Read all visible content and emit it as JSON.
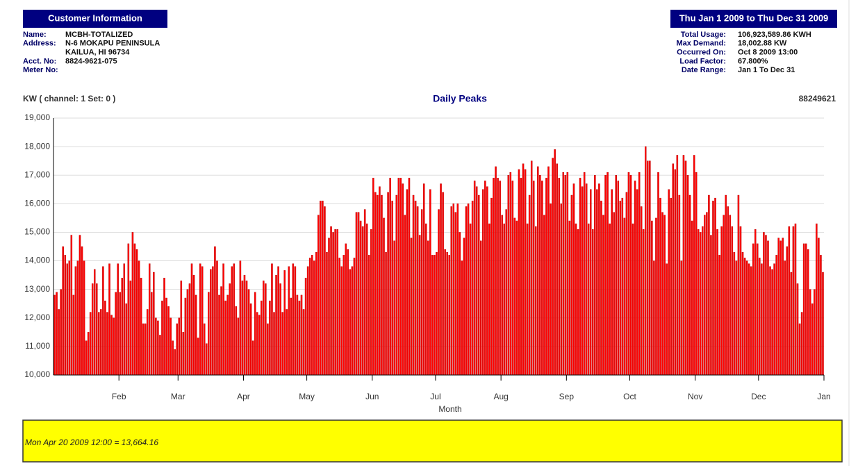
{
  "customer": {
    "title": "Customer Information",
    "rows": [
      [
        "Name:",
        "MCBH-TOTALIZED"
      ],
      [
        "Address:",
        "N-6 MOKAPU PENINSULA"
      ],
      [
        null,
        "KAILUA, HI 96734"
      ],
      [
        "Acct. No:",
        "8824-9621-075"
      ],
      [
        "Meter No:",
        null
      ]
    ]
  },
  "summary": {
    "title": "Thu Jan 1 2009 to Thu Dec 31 2009",
    "rows": [
      [
        "Total Usage:",
        "106,923,589.86 KWH"
      ],
      [
        "Max Demand:",
        "18,002.88 KW"
      ],
      [
        "Occurred On:",
        "Oct 8 2009 13:00"
      ],
      [
        "Load Factor:",
        "67.800%"
      ],
      [
        "Date Range:",
        "Jan 1 To Dec 31"
      ]
    ]
  },
  "readout": "Mon Apr 20 2009 12:00 = 13,664.16",
  "chart_data": {
    "type": "bar",
    "title": "Daily Peaks",
    "ylabel": "KW ( channel: 1   Set: 0 )",
    "meter": "88249621",
    "xlabel": "Month",
    "color": "#ff0000",
    "grid": true,
    "ylim": [
      10000,
      19000
    ],
    "yticks": [
      {
        "value": 10000,
        "label": "10,000"
      },
      {
        "value": 11000,
        "label": "11,000"
      },
      {
        "value": 12000,
        "label": "12,000"
      },
      {
        "value": 13000,
        "label": "13,000"
      },
      {
        "value": 14000,
        "label": "14,000"
      },
      {
        "value": 15000,
        "label": "15,000"
      },
      {
        "value": 16000,
        "label": "16,000"
      },
      {
        "value": 17000,
        "label": "17,000"
      },
      {
        "value": 18000,
        "label": "18,000"
      },
      {
        "value": 19000,
        "label": "19,000"
      }
    ],
    "xlim": [
      0,
      365
    ],
    "xticks": [
      {
        "value": 31,
        "label": "Feb"
      },
      {
        "value": 59,
        "label": "Mar"
      },
      {
        "value": 90,
        "label": "Apr"
      },
      {
        "value": 120,
        "label": "May"
      },
      {
        "value": 151,
        "label": "Jun"
      },
      {
        "value": 181,
        "label": "Jul"
      },
      {
        "value": 212,
        "label": "Aug"
      },
      {
        "value": 243,
        "label": "Sep"
      },
      {
        "value": 273,
        "label": "Oct"
      },
      {
        "value": 304,
        "label": "Nov"
      },
      {
        "value": 334,
        "label": "Dec"
      },
      {
        "value": 365,
        "label": "Jan"
      }
    ],
    "values": [
      12800,
      12900,
      12300,
      13000,
      14500,
      14200,
      13900,
      14000,
      14900,
      12800,
      13800,
      14000,
      14900,
      14500,
      14000,
      11200,
      11500,
      12200,
      13200,
      13700,
      13200,
      12200,
      12300,
      13800,
      12600,
      12200,
      13900,
      12100,
      12000,
      12900,
      13900,
      12900,
      13400,
      13900,
      12500,
      14600,
      13300,
      15000,
      14600,
      14400,
      14000,
      13400,
      11800,
      11800,
      12300,
      13900,
      12900,
      13600,
      12000,
      11900,
      11400,
      12600,
      13400,
      12700,
      12400,
      12000,
      11200,
      10900,
      11800,
      12000,
      13300,
      11500,
      12700,
      13000,
      13200,
      13900,
      13500,
      12800,
      11300,
      13900,
      13800,
      11800,
      11100,
      12900,
      13700,
      13800,
      14500,
      14000,
      12800,
      13100,
      13900,
      12600,
      12800,
      13200,
      13800,
      13900,
      12400,
      12000,
      14000,
      13300,
      13500,
      13300,
      13000,
      12500,
      11200,
      12900,
      12200,
      12100,
      12600,
      13300,
      13200,
      11800,
      12600,
      13900,
      12200,
      13500,
      13800,
      13200,
      12200,
      13664.16,
      12300,
      13800,
      12700,
      13900,
      13800,
      12800,
      12600,
      12800,
      12300,
      13400,
      13800,
      14100,
      14200,
      14000,
      14300,
      15600,
      16100,
      16100,
      15900,
      14300,
      14800,
      15200,
      15000,
      15100,
      15100,
      14100,
      13800,
      14200,
      14600,
      14400,
      13700,
      13800,
      14100,
      15700,
      15700,
      15400,
      15200,
      15800,
      15300,
      14200,
      15100,
      16900,
      16400,
      16300,
      16600,
      16300,
      15500,
      14300,
      16400,
      16900,
      16100,
      14700,
      16300,
      16900,
      16900,
      16700,
      15600,
      16500,
      16900,
      14800,
      16300,
      16100,
      15900,
      14900,
      15800,
      16700,
      15300,
      14700,
      16500,
      14200,
      14200,
      14300,
      15800,
      16700,
      16400,
      14400,
      14300,
      14200,
      15900,
      16000,
      15700,
      16000,
      15000,
      14000,
      14800,
      15900,
      16000,
      15300,
      16100,
      16800,
      16600,
      16300,
      14700,
      16500,
      16800,
      16600,
      15300,
      16200,
      16900,
      17300,
      16900,
      16800,
      15600,
      15300,
      15800,
      17000,
      17100,
      16800,
      15500,
      15400,
      17200,
      16900,
      17400,
      17200,
      15300,
      16300,
      17500,
      16800,
      15200,
      17300,
      17000,
      16800,
      15600,
      16900,
      17300,
      16000,
      17600,
      17900,
      17400,
      16900,
      16000,
      17100,
      17000,
      17100,
      15400,
      16300,
      16700,
      15300,
      15100,
      16900,
      16600,
      17100,
      16700,
      15300,
      16500,
      15100,
      17000,
      16500,
      16700,
      16100,
      15600,
      17000,
      17100,
      15300,
      16500,
      15700,
      17000,
      16800,
      16100,
      16200,
      15500,
      16400,
      17100,
      17000,
      15300,
      16800,
      16500,
      17100,
      15900,
      15100,
      18002.88,
      17500,
      17500,
      15400,
      14000,
      15500,
      17100,
      16200,
      15700,
      15600,
      13900,
      16500,
      16200,
      17400,
      17200,
      17700,
      16300,
      14000,
      17700,
      17500,
      17000,
      16300,
      15400,
      17700,
      17100,
      15100,
      15000,
      15200,
      15600,
      15700,
      16300,
      14900,
      16100,
      16200,
      15100,
      14200,
      15200,
      15600,
      16300,
      15900,
      15600,
      15200,
      14300,
      14000,
      16300,
      15200,
      14300,
      14100,
      14000,
      13900,
      13800,
      14600,
      15100,
      14600,
      14100,
      13900,
      15000,
      14900,
      14700,
      13800,
      13700,
      13900,
      14200,
      14800,
      14700,
      14800,
      14000,
      14500,
      15200,
      13600,
      15200,
      15300,
      13200,
      11800,
      12200,
      14600,
      14600,
      14400,
      13000,
      12500,
      13000,
      15300,
      14800,
      14200,
      13600
    ]
  }
}
